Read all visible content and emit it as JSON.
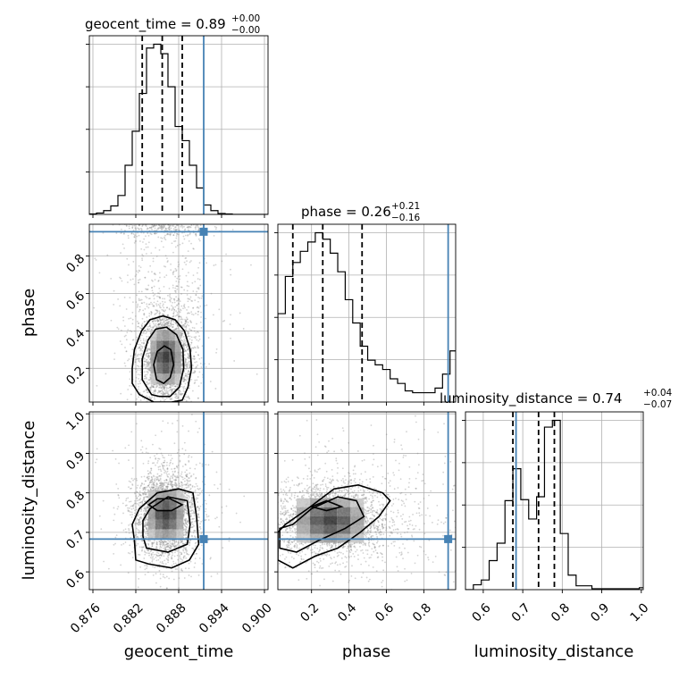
{
  "titles": {
    "geocent_time": {
      "label": "geocent_time = 0.89",
      "plus": "+0.00",
      "minus": "−0.00"
    },
    "phase": {
      "label": "phase = 0.26",
      "plus": "+0.21",
      "minus": "−0.16"
    },
    "luminosity_distance": {
      "label": "luminosity_distance = 0.74",
      "plus": "+0.04",
      "minus": "−0.07"
    }
  },
  "axis_labels": {
    "x1": "geocent_time",
    "x2": "phase",
    "x3": "luminosity_distance",
    "y2": "phase",
    "y3": "luminosity_distance"
  },
  "colors": {
    "truth": "#4682b4",
    "line": "#000000",
    "grid": "#b0b0b0"
  },
  "chart_data": {
    "type": "corner",
    "parameters": [
      "geocent_time",
      "phase",
      "luminosity_distance"
    ],
    "ranges": {
      "geocent_time": [
        0.8755,
        0.9005
      ],
      "phase": [
        0.02,
        0.97
      ],
      "luminosity_distance": [
        0.555,
        1.005
      ]
    },
    "truths": {
      "geocent_time": 0.8915,
      "phase": 0.93,
      "luminosity_distance": 0.683
    },
    "ticks": {
      "geocent_time": {
        "values": [
          0.876,
          0.882,
          0.888,
          0.894,
          0.9
        ],
        "labels": [
          "0.876",
          "0.882",
          "0.888",
          "0.894",
          "0.900"
        ]
      },
      "phase": {
        "values": [
          0.2,
          0.4,
          0.6,
          0.8
        ],
        "labels": [
          "0.2",
          "0.4",
          "0.6",
          "0.8"
        ]
      },
      "luminosity_distance": {
        "values": [
          0.6,
          0.7,
          0.8,
          0.9,
          1.0
        ],
        "labels": [
          "0.6",
          "0.7",
          "0.8",
          "0.9",
          "1.0"
        ]
      }
    },
    "histograms": {
      "geocent_time": {
        "edges": [
          0.8755,
          0.8765,
          0.8775,
          0.8785,
          0.8795,
          0.8805,
          0.8815,
          0.8825,
          0.8835,
          0.8845,
          0.8855,
          0.8865,
          0.8875,
          0.8885,
          0.8895,
          0.8905,
          0.8915,
          0.8925,
          0.8935,
          0.8945,
          0.8955,
          0.8965,
          0.8975,
          0.8985,
          0.8995,
          0.9005
        ],
        "counts": [
          0.5,
          1.5,
          4,
          9,
          20,
          52,
          88,
          128,
          176,
          180,
          170,
          135,
          93,
          78,
          52,
          28,
          10,
          4,
          1,
          0.5,
          0,
          0,
          0,
          0,
          0
        ],
        "quantiles": [
          0.8829,
          0.8857,
          0.8885
        ]
      },
      "phase": {
        "edges": [
          0.02,
          0.06,
          0.1,
          0.14,
          0.18,
          0.22,
          0.26,
          0.3,
          0.34,
          0.38,
          0.42,
          0.46,
          0.5,
          0.54,
          0.58,
          0.62,
          0.66,
          0.7,
          0.74,
          0.78,
          0.82,
          0.86,
          0.9,
          0.94,
          0.97
        ],
        "counts": [
          95,
          135,
          150,
          162,
          172,
          182,
          175,
          160,
          140,
          110,
          85,
          60,
          45,
          40,
          35,
          25,
          20,
          12,
          10,
          10,
          10,
          15,
          30,
          55
        ],
        "quantiles": [
          0.1,
          0.26,
          0.47
        ]
      },
      "luminosity_distance": {
        "edges": [
          0.555,
          0.575,
          0.595,
          0.615,
          0.635,
          0.655,
          0.675,
          0.695,
          0.715,
          0.735,
          0.755,
          0.775,
          0.795,
          0.815,
          0.835,
          0.855,
          0.875,
          0.895,
          0.915,
          0.935,
          0.955,
          0.975,
          0.995,
          1.005
        ],
        "counts": [
          0,
          5,
          10,
          30,
          48,
          92,
          125,
          93,
          73,
          96,
          168,
          175,
          58,
          15,
          4,
          4,
          1,
          1,
          1,
          1,
          1,
          1,
          2
        ],
        "quantiles": [
          0.675,
          0.74,
          0.78
        ]
      }
    },
    "contours": {
      "geocent_time_vs_phase": [
        [
          [
            0.8845,
            0.02
          ],
          [
            0.8825,
            0.06
          ],
          [
            0.8815,
            0.12
          ],
          [
            0.8815,
            0.2
          ],
          [
            0.8818,
            0.3
          ],
          [
            0.8828,
            0.4
          ],
          [
            0.884,
            0.46
          ],
          [
            0.8858,
            0.48
          ],
          [
            0.8875,
            0.46
          ],
          [
            0.8888,
            0.4
          ],
          [
            0.8896,
            0.3
          ],
          [
            0.8898,
            0.2
          ],
          [
            0.8893,
            0.1
          ],
          [
            0.8885,
            0.03
          ],
          [
            0.887,
            0.02
          ]
        ],
        [
          [
            0.8842,
            0.06
          ],
          [
            0.8829,
            0.14
          ],
          [
            0.8829,
            0.25
          ],
          [
            0.8837,
            0.35
          ],
          [
            0.8848,
            0.41
          ],
          [
            0.8863,
            0.42
          ],
          [
            0.8877,
            0.38
          ],
          [
            0.8886,
            0.3
          ],
          [
            0.8887,
            0.2
          ],
          [
            0.8881,
            0.1
          ],
          [
            0.8868,
            0.05
          ],
          [
            0.8853,
            0.05
          ]
        ],
        [
          [
            0.8849,
            0.14
          ],
          [
            0.8845,
            0.22
          ],
          [
            0.885,
            0.29
          ],
          [
            0.886,
            0.32
          ],
          [
            0.8869,
            0.3
          ],
          [
            0.8873,
            0.22
          ],
          [
            0.8868,
            0.15
          ],
          [
            0.8859,
            0.12
          ]
        ]
      ],
      "geocent_time_vs_luminosity_distance": [
        [
          [
            0.8818,
            0.68
          ],
          [
            0.882,
            0.63
          ],
          [
            0.8838,
            0.62
          ],
          [
            0.887,
            0.61
          ],
          [
            0.8895,
            0.63
          ],
          [
            0.8908,
            0.67
          ],
          [
            0.8905,
            0.74
          ],
          [
            0.89,
            0.8
          ],
          [
            0.888,
            0.81
          ],
          [
            0.885,
            0.8
          ],
          [
            0.8825,
            0.76
          ],
          [
            0.8815,
            0.72
          ]
        ],
        [
          [
            0.883,
            0.69
          ],
          [
            0.8835,
            0.66
          ],
          [
            0.8865,
            0.65
          ],
          [
            0.8892,
            0.67
          ],
          [
            0.8896,
            0.72
          ],
          [
            0.8892,
            0.78
          ],
          [
            0.8865,
            0.79
          ],
          [
            0.884,
            0.76
          ],
          [
            0.883,
            0.73
          ]
        ],
        [
          [
            0.8838,
            0.77
          ],
          [
            0.885,
            0.755
          ],
          [
            0.887,
            0.755
          ],
          [
            0.8885,
            0.77
          ],
          [
            0.8868,
            0.785
          ],
          [
            0.885,
            0.785
          ]
        ]
      ],
      "phase_vs_luminosity_distance": [
        [
          [
            0.02,
            0.63
          ],
          [
            0.1,
            0.61
          ],
          [
            0.22,
            0.64
          ],
          [
            0.34,
            0.66
          ],
          [
            0.46,
            0.7
          ],
          [
            0.56,
            0.74
          ],
          [
            0.62,
            0.78
          ],
          [
            0.58,
            0.8
          ],
          [
            0.45,
            0.82
          ],
          [
            0.32,
            0.81
          ],
          [
            0.18,
            0.76
          ],
          [
            0.06,
            0.72
          ],
          [
            0.02,
            0.7
          ]
        ],
        [
          [
            0.03,
            0.66
          ],
          [
            0.12,
            0.65
          ],
          [
            0.24,
            0.68
          ],
          [
            0.38,
            0.71
          ],
          [
            0.48,
            0.74
          ],
          [
            0.44,
            0.78
          ],
          [
            0.34,
            0.79
          ],
          [
            0.2,
            0.76
          ],
          [
            0.1,
            0.72
          ],
          [
            0.03,
            0.71
          ]
        ],
        [
          [
            0.2,
            0.765
          ],
          [
            0.28,
            0.755
          ],
          [
            0.36,
            0.765
          ],
          [
            0.28,
            0.78
          ]
        ]
      ]
    }
  }
}
